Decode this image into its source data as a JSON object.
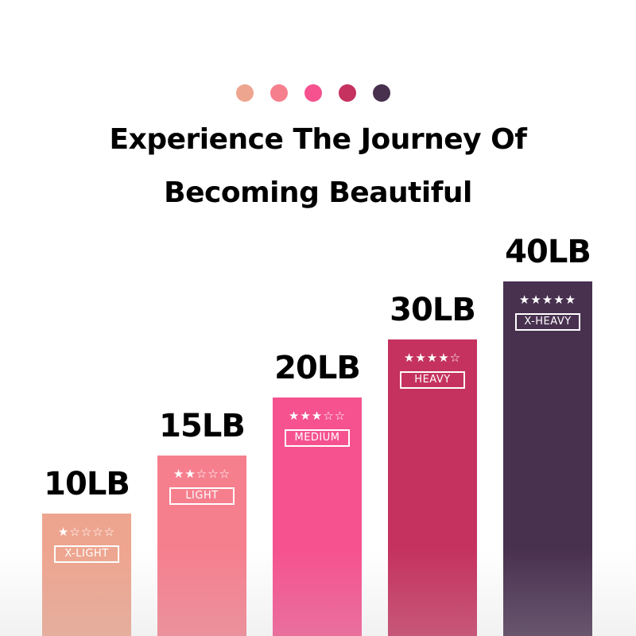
{
  "header": {
    "line1": "Experience The Journey Of",
    "line2": "Becoming Beautiful"
  },
  "colors": [
    "#EEA58F",
    "#F67F8E",
    "#F5528F",
    "#C5325F",
    "#48304F"
  ],
  "chart_data": {
    "type": "bar",
    "categories": [
      "10LB",
      "15LB",
      "20LB",
      "30LB",
      "40LB"
    ],
    "values": [
      10,
      15,
      20,
      30,
      40
    ],
    "unit": "LB",
    "levels": [
      "X-LIGHT",
      "LIGHT",
      "MEDIUM",
      "HEAVY",
      "X-HEAVY"
    ],
    "stars": [
      1,
      2,
      3,
      4,
      5
    ],
    "max_stars": 5,
    "colors": [
      "#EEA58F",
      "#F67F8E",
      "#F5528F",
      "#C5325F",
      "#48304F"
    ],
    "grid": false,
    "legend": "none"
  }
}
